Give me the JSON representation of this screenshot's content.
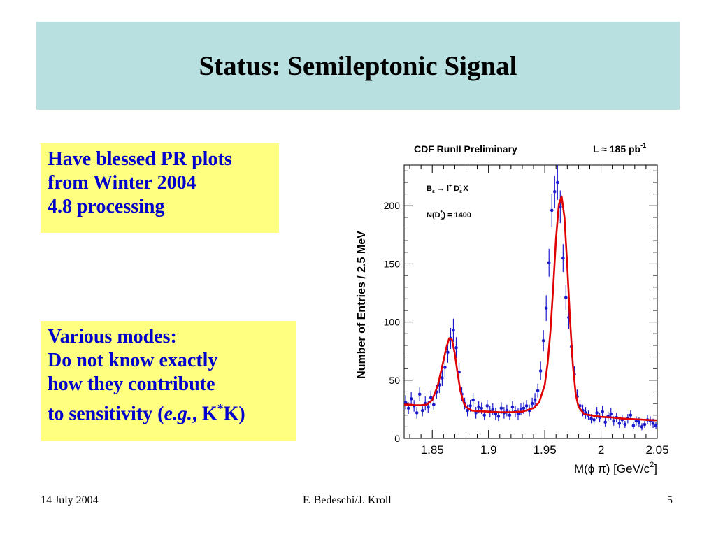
{
  "slide": {
    "title": "Status: Semileptonic Signal",
    "note1": {
      "lines": [
        "Have blessed PR plots",
        "from Winter 2004",
        "4.8 processing"
      ]
    },
    "note2": {
      "lines": [
        "Various modes:",
        "Do not know exactly",
        "how they contribute"
      ],
      "last_line": {
        "prefix": "to sensitivity (",
        "italic": "e.g.",
        "mid": ", K",
        "sup": "*",
        "suffix": "K)"
      }
    },
    "footer": {
      "date": "14 July 2004",
      "authors": "F. Bedeschi/J. Kroll",
      "page": "5"
    }
  },
  "chart_data": {
    "type": "scatter",
    "title": "CDF RunII Preliminary",
    "luminosity": {
      "prefix": "L ≈ 185 pb",
      "sup": "-1"
    },
    "annotations": {
      "decay": {
        "main": "B",
        "sub1": "s",
        "arrow": " → l",
        "sup1": "+",
        "d": " D",
        "sub2": "s",
        "sup2": "-",
        "end": " X"
      },
      "count": {
        "main": "N(D",
        "sub": "s",
        "sup": "±",
        "end": ") = 1400"
      }
    },
    "ylabel": "Number of Entries / 2.5 MeV",
    "xlabel": {
      "main": "M(ϕ π) [GeV/c",
      "sup": "2",
      "end": "]"
    },
    "xlim": [
      1.825,
      2.05
    ],
    "ylim": [
      0,
      235
    ],
    "xticks": [
      "1.85",
      "1.9",
      "1.95",
      "2",
      "2.05"
    ],
    "yticks": [
      "0",
      "50",
      "100",
      "150",
      "200"
    ],
    "colors": {
      "points": "#1a1acc",
      "fit": "#e00000"
    },
    "points": {
      "x": [
        1.8263,
        1.8288,
        1.8313,
        1.8338,
        1.8363,
        1.8388,
        1.8413,
        1.8438,
        1.8463,
        1.8488,
        1.8513,
        1.8538,
        1.8563,
        1.8588,
        1.8613,
        1.8638,
        1.8663,
        1.8688,
        1.8713,
        1.8738,
        1.8763,
        1.8788,
        1.8813,
        1.8838,
        1.8863,
        1.8888,
        1.8913,
        1.8938,
        1.8963,
        1.8988,
        1.9013,
        1.9038,
        1.9063,
        1.9088,
        1.9113,
        1.9138,
        1.9163,
        1.9188,
        1.9213,
        1.9238,
        1.9263,
        1.9288,
        1.9313,
        1.9338,
        1.9363,
        1.9388,
        1.9413,
        1.9438,
        1.9463,
        1.9488,
        1.9513,
        1.9538,
        1.9563,
        1.9588,
        1.9613,
        1.9638,
        1.9663,
        1.9688,
        1.9713,
        1.9738,
        1.9763,
        1.9788,
        1.9813,
        1.9838,
        1.9863,
        1.9888,
        1.9913,
        1.9938,
        1.9963,
        1.9988,
        2.0013,
        2.0038,
        2.0063,
        2.0088,
        2.0113,
        2.0138,
        2.0163,
        2.0188,
        2.0213,
        2.0238,
        2.0263,
        2.0288,
        2.0313,
        2.0338,
        2.0363,
        2.0388,
        2.0413,
        2.0438,
        2.0463,
        2.0488
      ],
      "y": [
        31,
        26,
        34,
        28,
        22,
        38,
        24,
        30,
        27,
        35,
        29,
        40,
        46,
        52,
        61,
        74,
        86,
        93,
        78,
        57,
        38,
        30,
        24,
        28,
        33,
        22,
        27,
        26,
        20,
        28,
        23,
        25,
        21,
        19,
        26,
        22,
        24,
        20,
        27,
        23,
        21,
        25,
        26,
        28,
        24,
        30,
        33,
        41,
        58,
        84,
        112,
        151,
        196,
        212,
        220,
        199,
        155,
        121,
        104,
        79,
        55,
        36,
        28,
        24,
        22,
        20,
        17,
        16,
        22,
        18,
        23,
        14,
        19,
        21,
        15,
        18,
        13,
        16,
        12,
        17,
        20,
        11,
        15,
        14,
        10,
        12,
        16,
        15,
        13,
        11
      ],
      "err": [
        6,
        5,
        6,
        5,
        5,
        6,
        5,
        6,
        5,
        6,
        5,
        6,
        7,
        7,
        8,
        9,
        9,
        10,
        9,
        8,
        6,
        5,
        5,
        5,
        6,
        5,
        5,
        5,
        4,
        5,
        5,
        5,
        5,
        4,
        5,
        5,
        5,
        4,
        5,
        5,
        5,
        5,
        5,
        5,
        5,
        5,
        6,
        6,
        8,
        9,
        11,
        12,
        14,
        14,
        15,
        14,
        12,
        11,
        10,
        9,
        7,
        6,
        5,
        5,
        5,
        4,
        4,
        4,
        5,
        4,
        5,
        4,
        4,
        5,
        4,
        4,
        4,
        4,
        3,
        4,
        4,
        3,
        4,
        4,
        3,
        3,
        4,
        4,
        4,
        3
      ]
    },
    "fit": {
      "x": [
        1.825,
        1.83,
        1.835,
        1.84,
        1.845,
        1.85,
        1.855,
        1.86,
        1.8625,
        1.865,
        1.8675,
        1.87,
        1.8725,
        1.875,
        1.8775,
        1.88,
        1.885,
        1.89,
        1.9,
        1.91,
        1.92,
        1.93,
        1.94,
        1.945,
        1.95,
        1.9525,
        1.955,
        1.9575,
        1.96,
        1.9625,
        1.965,
        1.9675,
        1.97,
        1.9725,
        1.975,
        1.9775,
        1.98,
        1.985,
        1.99,
        2.0,
        2.01,
        2.02,
        2.03,
        2.04,
        2.05
      ],
      "y": [
        29,
        29,
        28.5,
        28.5,
        29,
        33,
        46,
        67,
        78,
        86,
        85,
        73,
        56,
        41,
        32,
        27,
        24,
        23.5,
        23,
        22.5,
        22.5,
        23,
        26,
        31,
        46,
        64,
        92,
        130,
        172,
        201,
        208,
        190,
        148,
        101,
        63,
        38,
        27,
        21,
        20,
        18.5,
        18,
        17,
        16.5,
        16,
        15.5
      ]
    }
  }
}
